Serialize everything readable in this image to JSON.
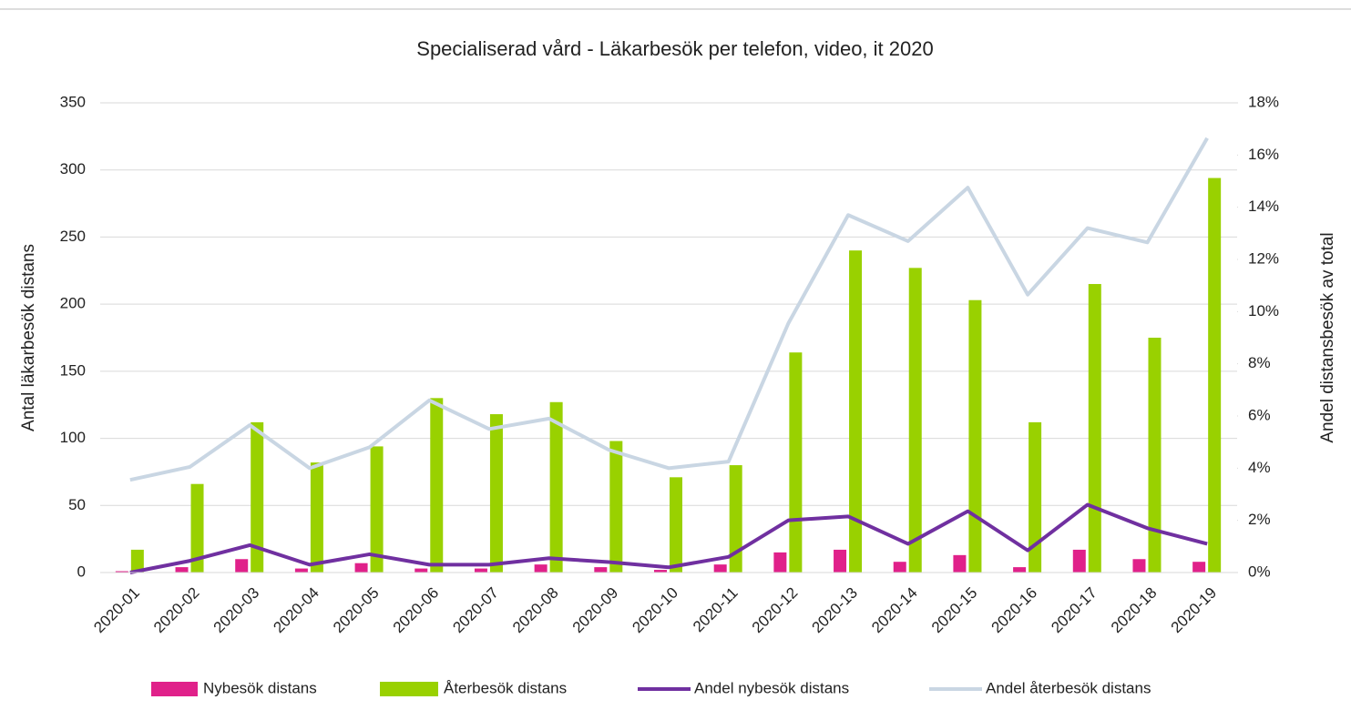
{
  "chart_data": {
    "type": "bar",
    "title": "Specialiserad vård - Läkarbesök per telefon, video, it 2020",
    "y_label": "Antal läkarbesök distans",
    "y2_label": "Andel distansbesök av total",
    "categories": [
      "2020-01",
      "2020-02",
      "2020-03",
      "2020-04",
      "2020-05",
      "2020-06",
      "2020-07",
      "2020-08",
      "2020-09",
      "2020-10",
      "2020-11",
      "2020-12",
      "2020-13",
      "2020-14",
      "2020-15",
      "2020-16",
      "2020-17",
      "2020-18",
      "2020-19"
    ],
    "series": [
      {
        "name": "Nybesök distans",
        "type": "bar",
        "color": "#e0218a",
        "values": [
          1,
          4,
          10,
          3,
          7,
          3,
          3,
          6,
          4,
          2,
          6,
          15,
          17,
          8,
          13,
          4,
          17,
          10,
          8
        ]
      },
      {
        "name": "Återbesök distans",
        "type": "bar",
        "color": "#99d100",
        "values": [
          17,
          66,
          112,
          82,
          94,
          130,
          118,
          127,
          98,
          71,
          80,
          164,
          240,
          227,
          203,
          112,
          215,
          175,
          294
        ]
      },
      {
        "name": "Andel nybesök distans",
        "type": "line",
        "axis": "y2",
        "color": "#7030a0",
        "values": [
          0.0,
          0.45,
          1.05,
          0.3,
          0.7,
          0.3,
          0.3,
          0.55,
          0.4,
          0.2,
          0.6,
          2.0,
          2.15,
          1.1,
          2.35,
          0.85,
          2.6,
          1.7,
          1.1
        ]
      },
      {
        "name": "Andel återbesök distans",
        "type": "line",
        "axis": "y2",
        "color": "#c9d6e3",
        "values": [
          3.55,
          4.05,
          5.65,
          4.0,
          4.8,
          6.6,
          5.5,
          5.9,
          4.7,
          4.0,
          4.25,
          9.55,
          13.7,
          12.7,
          14.75,
          10.65,
          13.2,
          12.65,
          16.65
        ]
      }
    ],
    "ylim": [
      0,
      350
    ],
    "yticks": [
      0,
      50,
      100,
      150,
      200,
      250,
      300,
      350
    ],
    "y2lim": [
      0,
      18
    ],
    "y2ticks": [
      {
        "value": 0,
        "label": "0%"
      },
      {
        "value": 2,
        "label": "2%"
      },
      {
        "value": 4,
        "label": "4%"
      },
      {
        "value": 6,
        "label": "6%"
      },
      {
        "value": 8,
        "label": "8%"
      },
      {
        "value": 10,
        "label": "10%"
      },
      {
        "value": 12,
        "label": "12%"
      },
      {
        "value": 14,
        "label": "14%"
      },
      {
        "value": 16,
        "label": "16%"
      },
      {
        "value": 18,
        "label": "18%"
      }
    ],
    "grid": true,
    "legend": "bottom"
  }
}
